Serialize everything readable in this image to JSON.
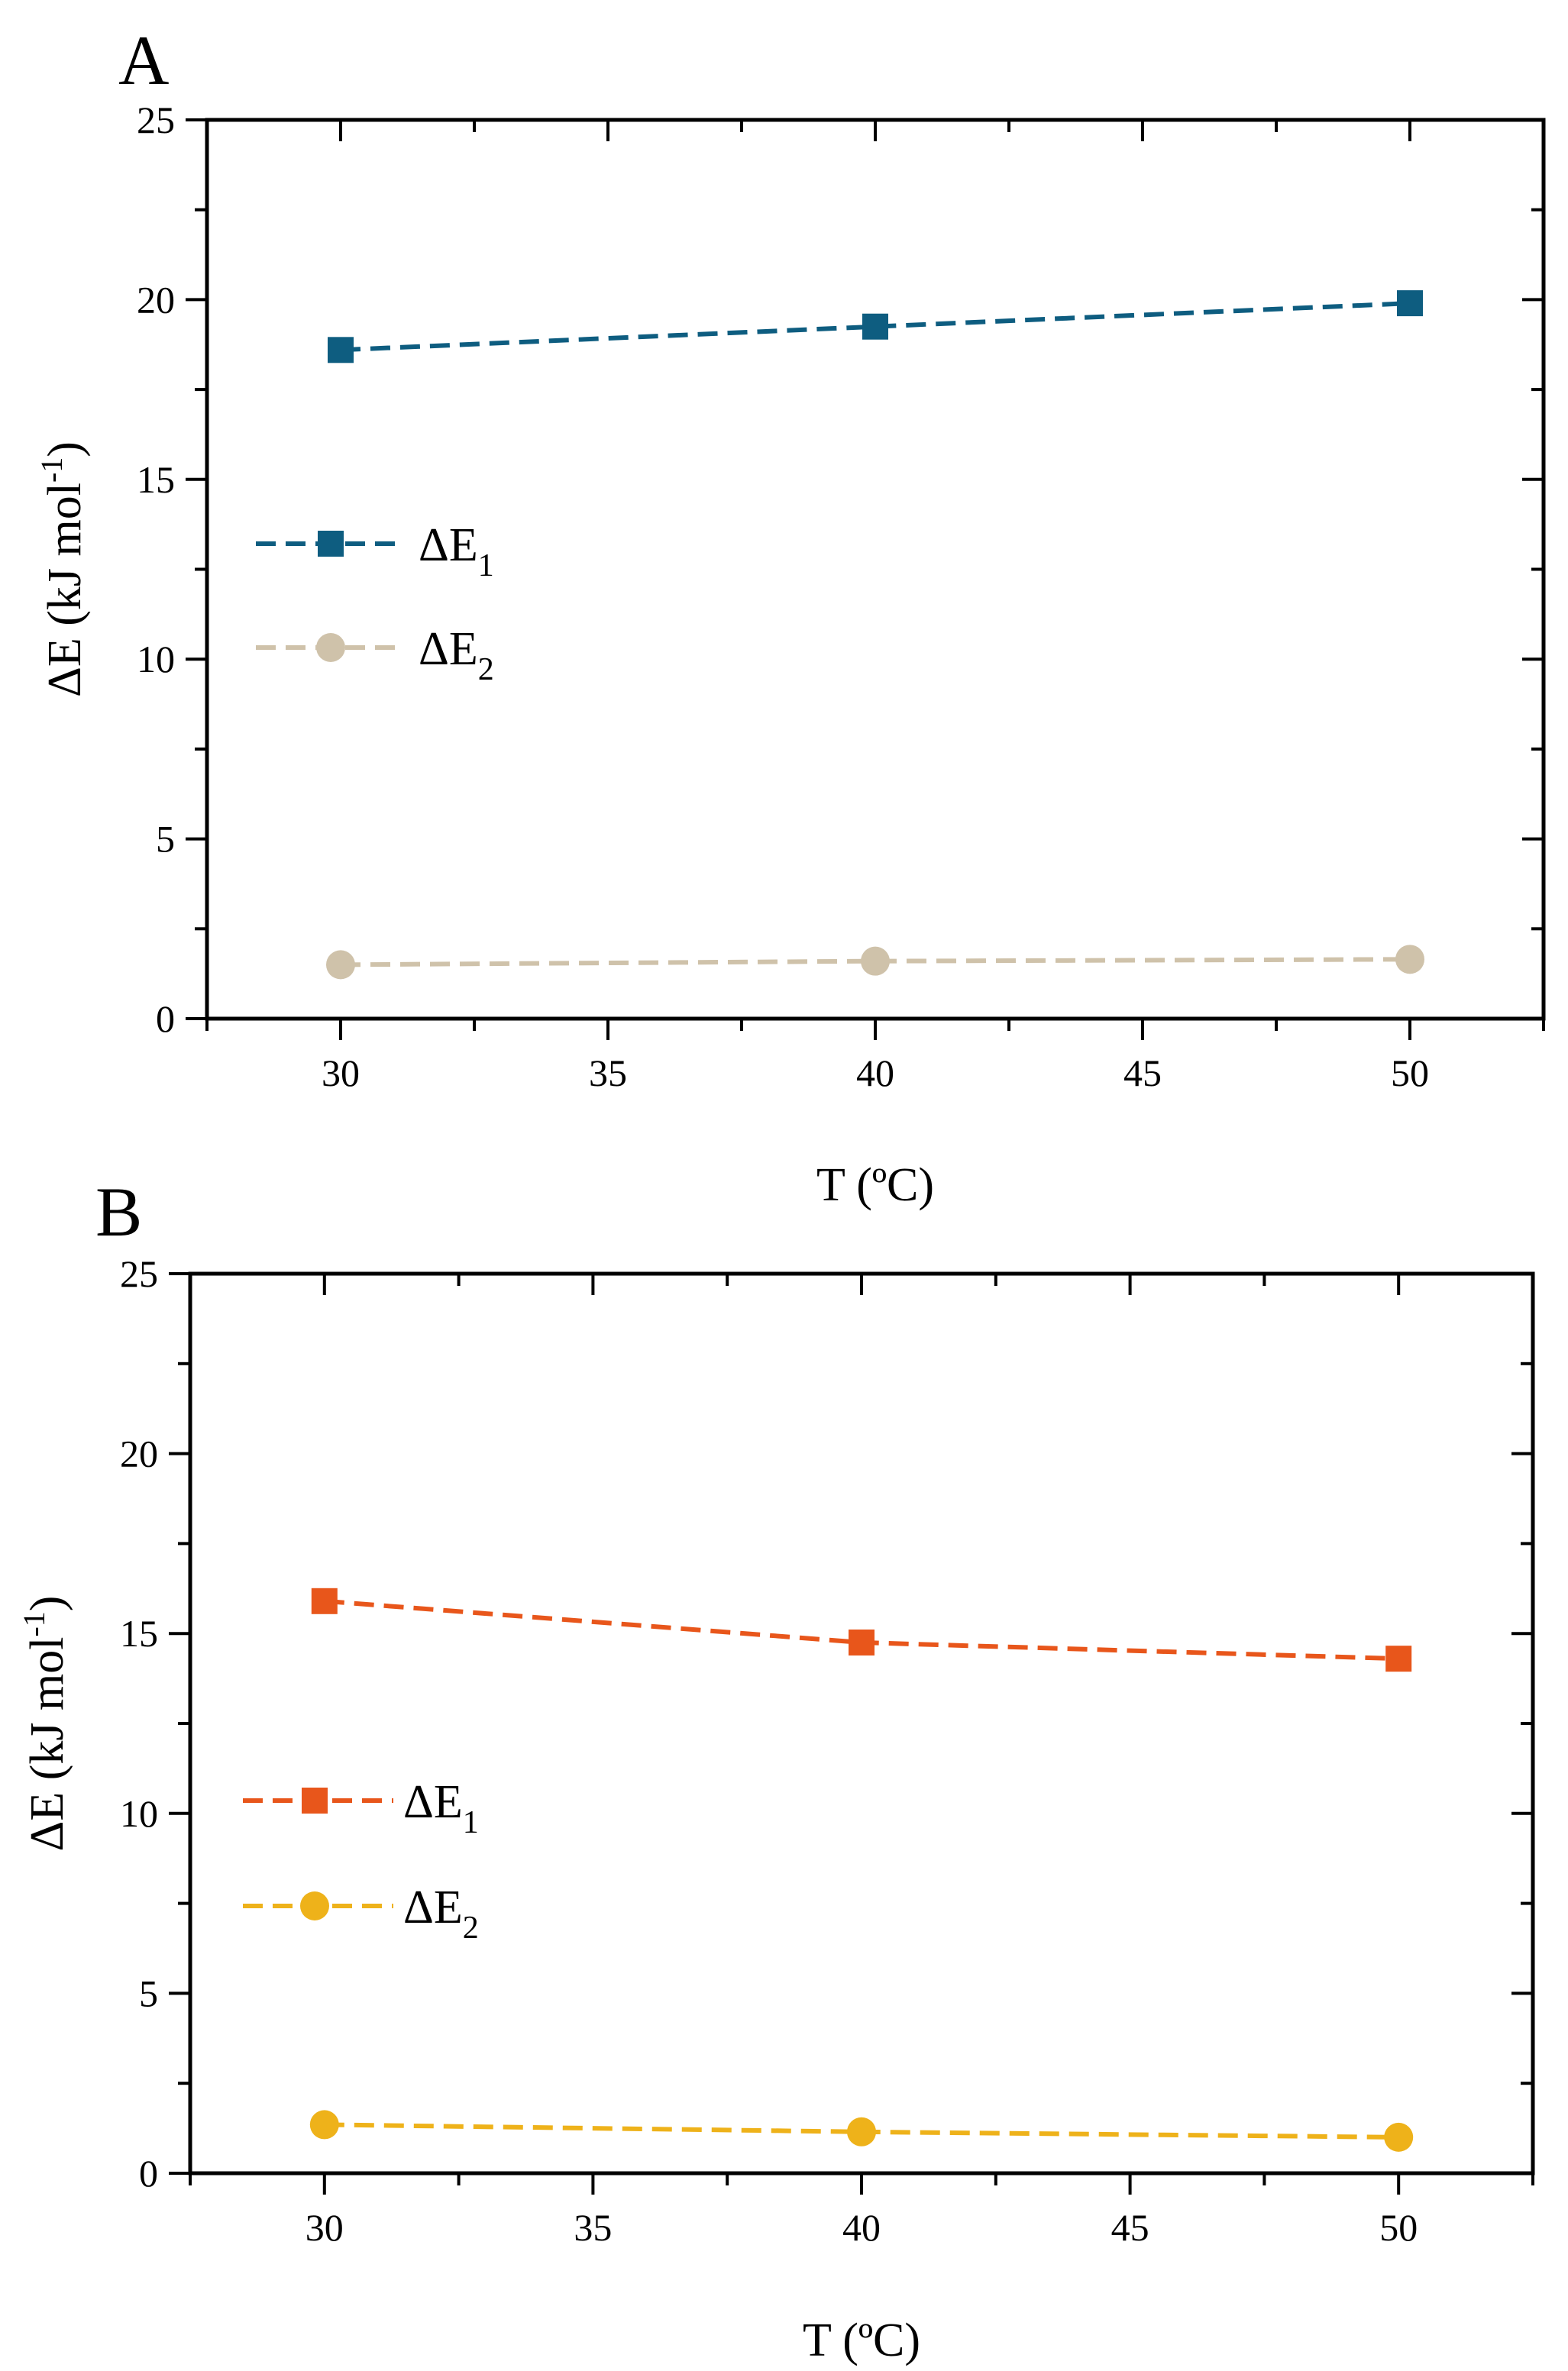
{
  "chart_data": [
    {
      "type": "line",
      "panel": "A",
      "xlabel": "T (ºC)",
      "ylabel_main": "ΔE (kJ mol",
      "ylabel_sup": "-1",
      "ylabel_close": ")",
      "xlim": [
        27.5,
        52.5
      ],
      "ylim": [
        0,
        25
      ],
      "xticks": [
        30,
        35,
        40,
        45,
        50
      ],
      "yticks": [
        0,
        5,
        10,
        15,
        20,
        25
      ],
      "legend_position": "center-left",
      "series": [
        {
          "name": "ΔE",
          "subscript": "1",
          "marker": "square",
          "color": "#0e5d80",
          "x": [
            30,
            40,
            50
          ],
          "y": [
            18.6,
            19.25,
            19.9
          ]
        },
        {
          "name": "ΔE",
          "subscript": "2",
          "marker": "circle",
          "color": "#cfc2aa",
          "x": [
            30,
            40,
            50
          ],
          "y": [
            1.5,
            1.6,
            1.65
          ]
        }
      ]
    },
    {
      "type": "line",
      "panel": "B",
      "xlabel": "T (ºC)",
      "ylabel_main": "ΔE (kJ mol",
      "ylabel_sup": "-1",
      "ylabel_close": ")",
      "xlim": [
        27.5,
        52.5
      ],
      "ylim": [
        0,
        25
      ],
      "xticks": [
        30,
        35,
        40,
        45,
        50
      ],
      "yticks": [
        0,
        5,
        10,
        15,
        20,
        25
      ],
      "legend_position": "center-left",
      "series": [
        {
          "name": "ΔE",
          "subscript": "1",
          "marker": "square",
          "color": "#e8561b",
          "x": [
            30,
            40,
            50
          ],
          "y": [
            15.9,
            14.75,
            14.3
          ]
        },
        {
          "name": "ΔE",
          "subscript": "2",
          "marker": "circle",
          "color": "#eeb21a",
          "x": [
            30,
            40,
            50
          ],
          "y": [
            1.35,
            1.15,
            1.0
          ]
        }
      ]
    }
  ]
}
